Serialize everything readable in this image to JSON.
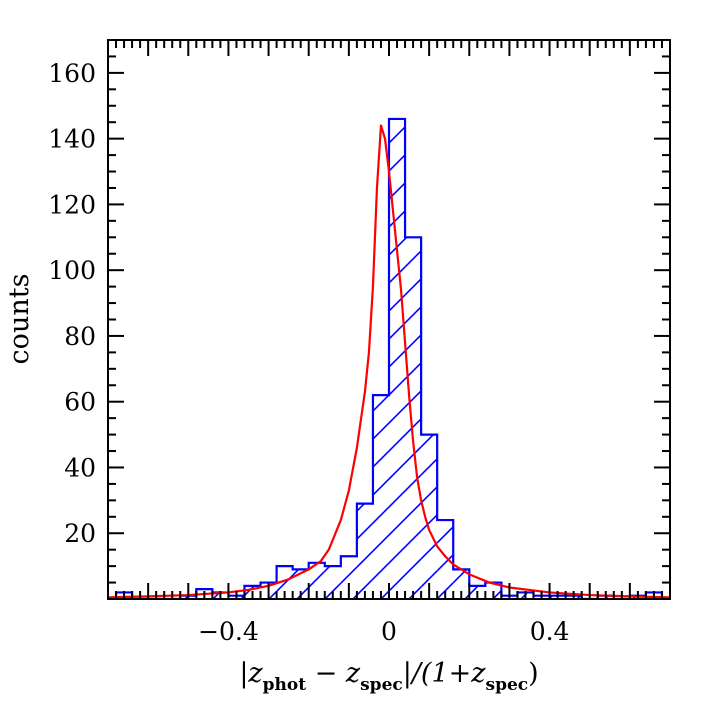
{
  "chart_data": {
    "type": "bar",
    "title": "",
    "ylabel": "counts",
    "xlabel": {
      "parts": [
        "|z",
        "phot",
        " − z",
        "spec",
        "|/(1+z",
        "spec",
        ")"
      ]
    },
    "xlim": [
      -0.7,
      0.7
    ],
    "ylim": [
      0,
      170
    ],
    "x_ticks": [
      -0.4,
      0,
      0.4
    ],
    "x_tick_labels": [
      "−0.4",
      "0",
      "0.4"
    ],
    "y_ticks": [
      20,
      40,
      60,
      80,
      100,
      120,
      140,
      160
    ],
    "y_tick_labels": [
      "20",
      "40",
      "60",
      "80",
      "100",
      "120",
      "140",
      "160"
    ],
    "grid": false,
    "series": [
      {
        "type": "histogram",
        "color": "#0000ff",
        "hatched": true,
        "bin_width": 0.04,
        "bins": [
          {
            "x0": -0.7,
            "count": 0
          },
          {
            "x0": -0.68,
            "count": 2
          },
          {
            "x0": -0.64,
            "count": 0
          },
          {
            "x0": -0.52,
            "count": 1
          },
          {
            "x0": -0.48,
            "count": 3
          },
          {
            "x0": -0.44,
            "count": 2
          },
          {
            "x0": -0.4,
            "count": 1
          },
          {
            "x0": -0.36,
            "count": 4
          },
          {
            "x0": -0.32,
            "count": 5
          },
          {
            "x0": -0.28,
            "count": 10
          },
          {
            "x0": -0.24,
            "count": 9
          },
          {
            "x0": -0.2,
            "count": 11
          },
          {
            "x0": -0.16,
            "count": 10
          },
          {
            "x0": -0.12,
            "count": 13
          },
          {
            "x0": -0.08,
            "count": 29
          },
          {
            "x0": -0.04,
            "count": 62
          },
          {
            "x0": 0.0,
            "count": 146
          },
          {
            "x0": 0.04,
            "count": 110
          },
          {
            "x0": 0.08,
            "count": 50
          },
          {
            "x0": 0.12,
            "count": 24
          },
          {
            "x0": 0.16,
            "count": 9
          },
          {
            "x0": 0.2,
            "count": 4
          },
          {
            "x0": 0.24,
            "count": 5
          },
          {
            "x0": 0.28,
            "count": 1
          },
          {
            "x0": 0.32,
            "count": 2
          },
          {
            "x0": 0.36,
            "count": 1
          },
          {
            "x0": 0.4,
            "count": 1
          },
          {
            "x0": 0.44,
            "count": 1
          },
          {
            "x0": 0.48,
            "count": 0
          },
          {
            "x0": 0.52,
            "count": 1
          },
          {
            "x0": 0.56,
            "count": 0
          },
          {
            "x0": 0.6,
            "count": 1
          },
          {
            "x0": 0.64,
            "count": 2
          },
          {
            "x0": 0.68,
            "count": 0
          }
        ]
      },
      {
        "type": "line",
        "color": "#ff0000",
        "points": [
          [
            -0.7,
            0.5
          ],
          [
            -0.6,
            0.8
          ],
          [
            -0.5,
            1.2
          ],
          [
            -0.4,
            2.0
          ],
          [
            -0.35,
            2.8
          ],
          [
            -0.3,
            4.0
          ],
          [
            -0.25,
            6.0
          ],
          [
            -0.2,
            9.0
          ],
          [
            -0.17,
            11.5
          ],
          [
            -0.15,
            15.0
          ],
          [
            -0.12,
            24.0
          ],
          [
            -0.1,
            33.0
          ],
          [
            -0.08,
            46.0
          ],
          [
            -0.06,
            63.0
          ],
          [
            -0.05,
            75.0
          ],
          [
            -0.04,
            95.0
          ],
          [
            -0.03,
            125.0
          ],
          [
            -0.02,
            144.0
          ],
          [
            -0.01,
            140.0
          ],
          [
            0.0,
            130.0
          ],
          [
            0.01,
            118.0
          ],
          [
            0.02,
            106.0
          ],
          [
            0.03,
            94.0
          ],
          [
            0.04,
            78.0
          ],
          [
            0.05,
            62.0
          ],
          [
            0.06,
            48.0
          ],
          [
            0.07,
            37.0
          ],
          [
            0.08,
            30.0
          ],
          [
            0.09,
            25.0
          ],
          [
            0.1,
            21.0
          ],
          [
            0.12,
            16.0
          ],
          [
            0.14,
            13.0
          ],
          [
            0.16,
            10.5
          ],
          [
            0.2,
            7.5
          ],
          [
            0.25,
            5.0
          ],
          [
            0.3,
            3.5
          ],
          [
            0.4,
            2.0
          ],
          [
            0.5,
            1.2
          ],
          [
            0.6,
            0.8
          ],
          [
            0.7,
            0.5
          ]
        ]
      }
    ]
  }
}
